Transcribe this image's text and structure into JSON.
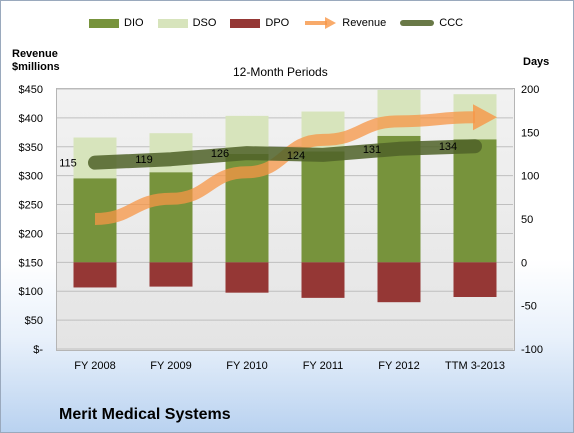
{
  "chart_data": {
    "type": "bar",
    "title": "12-Month Periods",
    "company": "Merit Medical Systems",
    "left_axis_title_line1": "Revenue",
    "left_axis_title_line2": "$millions",
    "right_axis_title": "Days",
    "left_axis": {
      "min": 0,
      "max": 450,
      "step": 50,
      "tick_labels": [
        "$-",
        "$50",
        "$100",
        "$150",
        "$200",
        "$250",
        "$300",
        "$350",
        "$400",
        "$450"
      ]
    },
    "right_axis": {
      "min": -100,
      "max": 200,
      "step": 50,
      "tick_labels": [
        "-100",
        "-50",
        "0",
        "50",
        "100",
        "150",
        "200"
      ]
    },
    "categories": [
      "FY 2008",
      "FY 2009",
      "FY 2010",
      "FY 2011",
      "FY 2012",
      "TTM 3-2013"
    ],
    "series": [
      {
        "name": "DIO",
        "color": "#77933c",
        "axis": "days",
        "values": [
          97,
          104,
          125,
          128,
          146,
          142
        ]
      },
      {
        "name": "DSO",
        "color": "#d7e4bc",
        "axis": "days",
        "values": [
          47,
          45,
          44,
          46,
          53,
          52
        ]
      },
      {
        "name": "DPO",
        "color": "#953735",
        "axis": "days",
        "values": [
          -29,
          -28,
          -35,
          -41,
          -46,
          -40
        ]
      },
      {
        "name": "Revenue",
        "color": "#f79646",
        "axis": "revenue",
        "style": "arrow",
        "values": [
          225,
          260,
          306,
          362,
          394,
          401
        ]
      },
      {
        "name": "CCC",
        "color": "#4f6228",
        "axis": "days",
        "style": "thick-line",
        "values": [
          115,
          119,
          126,
          124,
          131,
          134
        ]
      }
    ],
    "ccc_labels": [
      "115",
      "119",
      "126",
      "124",
      "131",
      "134"
    ],
    "grid": true,
    "legend_position": "top"
  }
}
